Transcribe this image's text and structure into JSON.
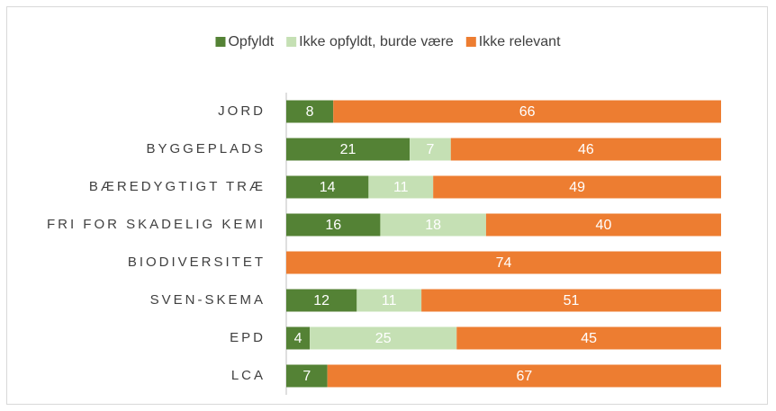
{
  "chart_data": {
    "type": "stacked-bar-horizontal",
    "categories": [
      "JORD",
      "BYGGEPLADS",
      "BÆREDYGTIGT TRÆ",
      "FRI FOR SKADELIG KEMI",
      "BIODIVERSITET",
      "SVEN-SKEMA",
      "EPD",
      "LCA"
    ],
    "series": [
      {
        "name": "Opfyldt",
        "color": "#548235",
        "values": [
          8,
          21,
          14,
          16,
          0,
          12,
          4,
          7
        ]
      },
      {
        "name": "Ikke opfyldt, burde være",
        "color": "#c5e0b4",
        "values": [
          0,
          7,
          11,
          18,
          0,
          11,
          25,
          0
        ]
      },
      {
        "name": "Ikke relevant",
        "color": "#ed7d31",
        "values": [
          66,
          46,
          49,
          40,
          74,
          51,
          45,
          67
        ]
      }
    ],
    "legend": "top"
  }
}
